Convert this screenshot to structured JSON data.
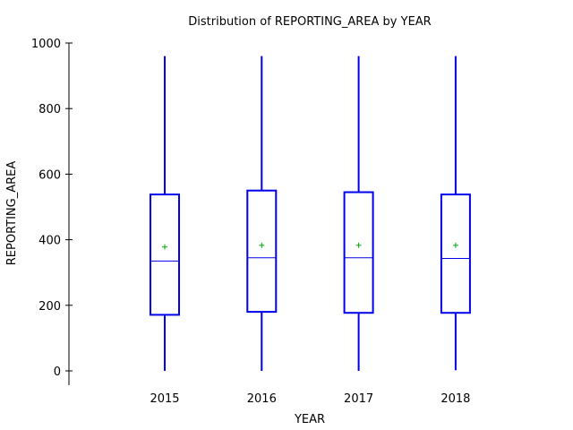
{
  "chart_data": {
    "type": "box",
    "title": "Distribution of REPORTING_AREA by YEAR",
    "xlabel": "YEAR",
    "ylabel": "REPORTING_AREA",
    "ylim": [
      0,
      1000
    ],
    "yticks": [
      0,
      200,
      400,
      600,
      800,
      1000
    ],
    "grid": false,
    "categories": [
      "2015",
      "2016",
      "2017",
      "2018"
    ],
    "boxes": [
      {
        "category": "2015",
        "min": 0,
        "q1": 171,
        "median": 335,
        "q3": 538,
        "max": 960,
        "mean": 378
      },
      {
        "category": "2016",
        "min": 0,
        "q1": 180,
        "median": 345,
        "q3": 550,
        "max": 960,
        "mean": 383
      },
      {
        "category": "2017",
        "min": 0,
        "q1": 177,
        "median": 345,
        "q3": 545,
        "max": 960,
        "mean": 383
      },
      {
        "category": "2018",
        "min": 2,
        "q1": 177,
        "median": 343,
        "q3": 538,
        "max": 960,
        "mean": 383
      }
    ],
    "colors": {
      "box": "#0000ee",
      "mean_marker": "#00aa00",
      "axis": "#000000"
    }
  }
}
